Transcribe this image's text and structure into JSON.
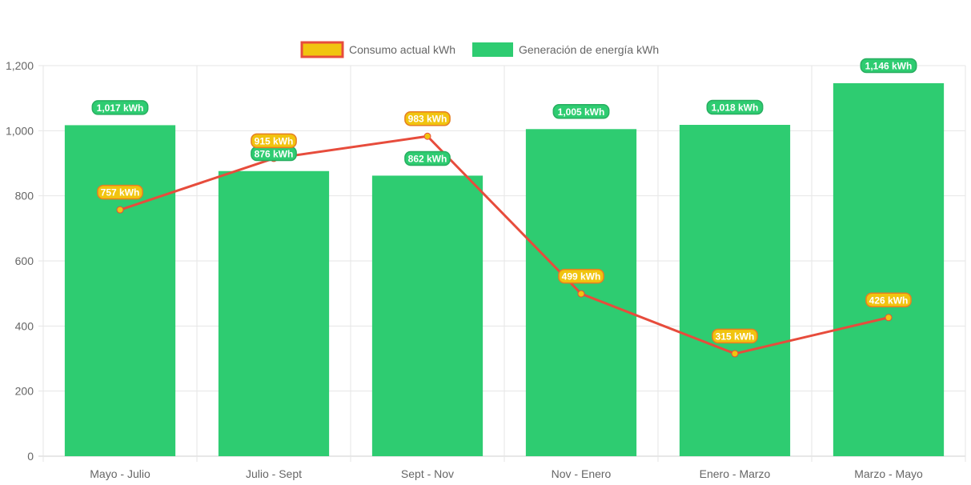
{
  "chart_data": {
    "type": "bar",
    "categories": [
      "Mayo - Julio",
      "Julio - Sept",
      "Sept - Nov",
      "Nov - Enero",
      "Enero - Marzo",
      "Marzo - Mayo"
    ],
    "series": [
      {
        "name": "Generación de energía kWh",
        "type": "bar",
        "values": [
          1017,
          876,
          862,
          1005,
          1018,
          1146
        ],
        "labels": [
          "1,017 kWh",
          "876 kWh",
          "862 kWh",
          "1,005 kWh",
          "1,018 kWh",
          "1,146 kWh"
        ],
        "color": "#2ecc71"
      },
      {
        "name": "Consumo actual kWh",
        "type": "line",
        "values": [
          757,
          915,
          983,
          499,
          315,
          426
        ],
        "labels": [
          "757 kWh",
          "915 kWh",
          "983 kWh",
          "499 kWh",
          "315 kWh",
          "426 kWh"
        ],
        "color": "#f1c40f",
        "line_color": "#e74c3c"
      }
    ],
    "y_ticks": [
      "0",
      "200",
      "400",
      "600",
      "800",
      "1,000",
      "1,200"
    ],
    "ylim": [
      0,
      1200
    ],
    "grid": true,
    "legend": "top-center",
    "title": "",
    "xlabel": "",
    "ylabel": ""
  }
}
